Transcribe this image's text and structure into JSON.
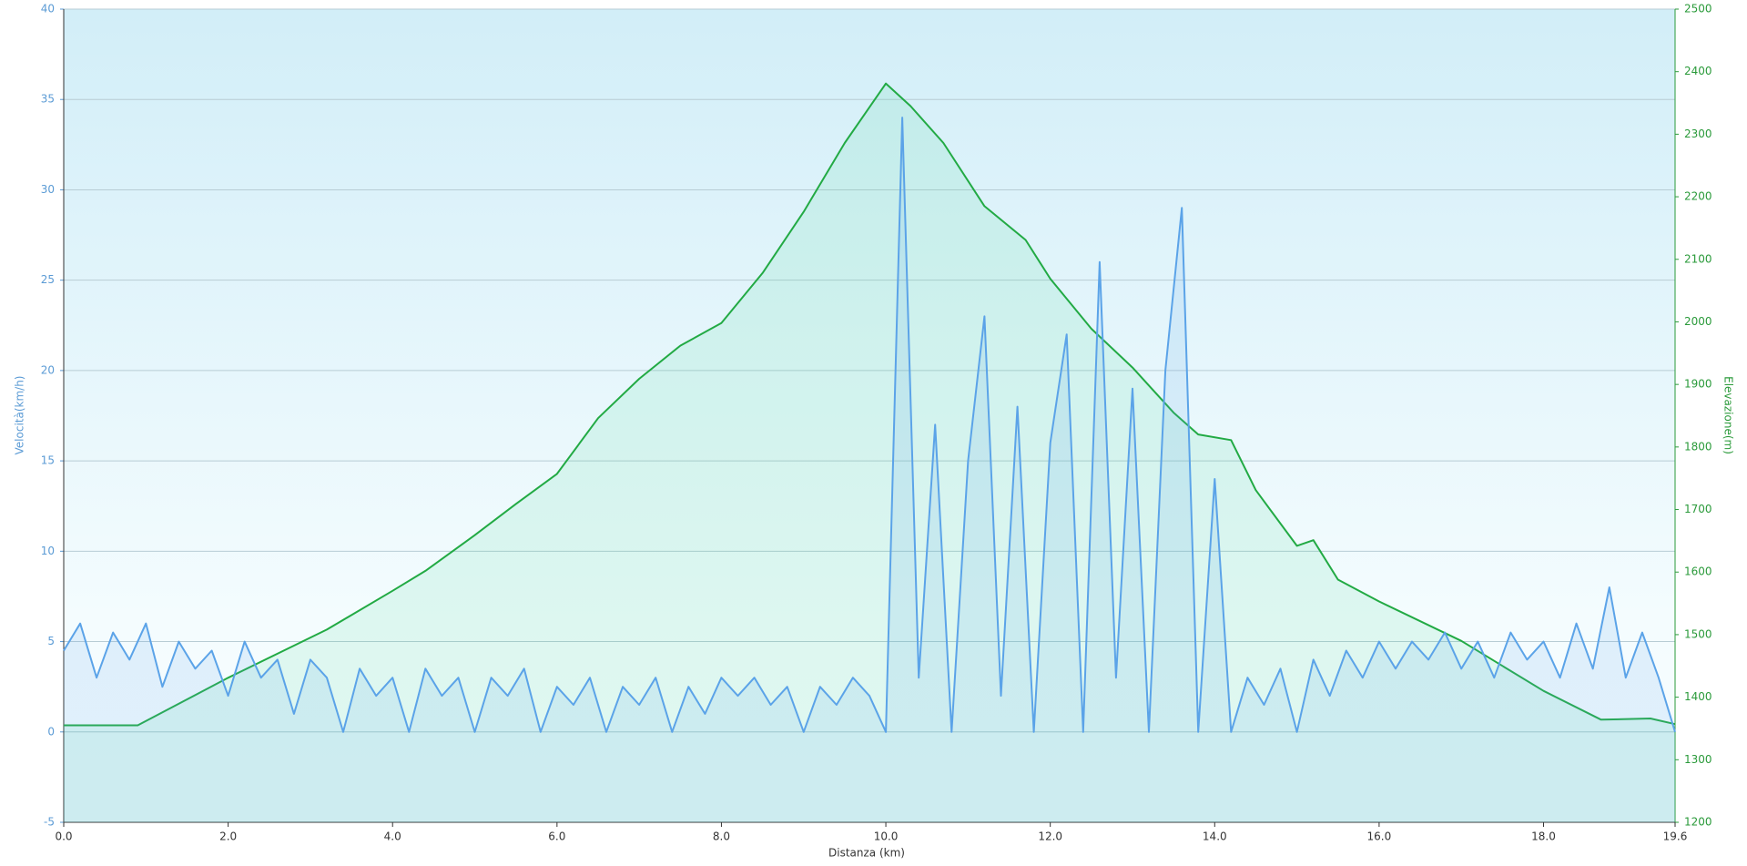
{
  "chart_data": {
    "type": "line",
    "xlabel": "Distanza  (km)",
    "ylabel": "Velocità(km/h)",
    "y2label": "Elevazione(m)",
    "xlim": [
      0,
      19.6
    ],
    "xticks": [
      {
        "value": 0,
        "label": "0.0"
      },
      {
        "value": 2,
        "label": "2.0"
      },
      {
        "value": 4,
        "label": "4.0"
      },
      {
        "value": 6,
        "label": "6.0"
      },
      {
        "value": 8,
        "label": "8.0"
      },
      {
        "value": 10,
        "label": "10.0"
      },
      {
        "value": 12,
        "label": "12.0"
      },
      {
        "value": 14,
        "label": "14.0"
      },
      {
        "value": 16,
        "label": "16.0"
      },
      {
        "value": 18,
        "label": "18.0"
      },
      19.6
    ],
    "ylim": [
      -5,
      40
    ],
    "yticks": [
      -5,
      0,
      5,
      10,
      15,
      20,
      25,
      30,
      35,
      40
    ],
    "y2lim": [
      1200,
      2500
    ],
    "y2ticks": [
      1200,
      1300,
      1400,
      1500,
      1600,
      1700,
      1800,
      1900,
      2000,
      2100,
      2200,
      2300,
      2400,
      2500
    ],
    "grid": true,
    "series": [
      {
        "name": "Elevazione",
        "color": "#22aa44",
        "axis": "y2",
        "x": [
          0,
          0.9,
          2.0,
          3.2,
          4.0,
          4.4,
          5.0,
          5.5,
          6.0,
          6.5,
          7.0,
          7.5,
          8.0,
          8.5,
          9.0,
          9.5,
          10.0,
          10.3,
          10.7,
          11.2,
          11.7,
          12.0,
          12.5,
          13.0,
          13.5,
          13.8,
          14.2,
          14.5,
          15.0,
          15.2,
          15.5,
          16.0,
          17.0,
          18.0,
          18.7,
          19.3,
          19.6
        ],
        "values": [
          1355,
          1355,
          1431,
          1508,
          1570,
          1602,
          1659,
          1709,
          1757,
          1846,
          1909,
          1962,
          1998,
          2078,
          2176,
          2286,
          2381,
          2345,
          2286,
          2185,
          2131,
          2069,
          1989,
          1927,
          1855,
          1820,
          1811,
          1731,
          1642,
          1651,
          1588,
          1553,
          1490,
          1410,
          1364,
          1366,
          1357
        ]
      },
      {
        "name": "Velocità",
        "color": "#5ba3e8",
        "axis": "y",
        "x": [
          0,
          0.2,
          0.4,
          0.6,
          0.8,
          1.0,
          1.2,
          1.4,
          1.6,
          1.8,
          2.0,
          2.2,
          2.4,
          2.6,
          2.8,
          3.0,
          3.2,
          3.4,
          3.6,
          3.8,
          4.0,
          4.2,
          4.4,
          4.6,
          4.8,
          5.0,
          5.2,
          5.4,
          5.6,
          5.8,
          6.0,
          6.2,
          6.4,
          6.6,
          6.8,
          7.0,
          7.2,
          7.4,
          7.6,
          7.8,
          8.0,
          8.2,
          8.4,
          8.6,
          8.8,
          9.0,
          9.2,
          9.4,
          9.6,
          9.8,
          10.0,
          10.2,
          10.4,
          10.6,
          10.8,
          11.0,
          11.2,
          11.4,
          11.6,
          11.8,
          12.0,
          12.2,
          12.4,
          12.6,
          12.8,
          13.0,
          13.2,
          13.4,
          13.6,
          13.8,
          14.0,
          14.2,
          14.4,
          14.6,
          14.8,
          15.0,
          15.2,
          15.4,
          15.6,
          15.8,
          16.0,
          16.2,
          16.4,
          16.6,
          16.8,
          17.0,
          17.2,
          17.4,
          17.6,
          17.8,
          18.0,
          18.2,
          18.4,
          18.6,
          18.8,
          19.0,
          19.2,
          19.4,
          19.6
        ],
        "values": [
          4.5,
          6,
          3,
          5.5,
          4,
          6,
          2.5,
          5,
          3.5,
          4.5,
          2,
          5,
          3,
          4,
          1,
          4,
          3,
          0,
          3.5,
          2,
          3,
          0,
          3.5,
          2,
          3,
          0,
          3,
          2,
          3.5,
          0,
          2.5,
          1.5,
          3,
          0,
          2.5,
          1.5,
          3,
          0,
          2.5,
          1,
          3,
          2,
          3,
          1.5,
          2.5,
          0,
          2.5,
          1.5,
          3,
          2,
          0,
          34,
          3,
          17,
          0,
          15,
          23,
          2,
          18,
          0,
          16,
          22,
          0,
          26,
          3,
          19,
          0,
          20,
          29,
          0,
          14,
          0,
          3,
          1.5,
          3.5,
          0,
          4,
          2,
          4.5,
          3,
          5,
          3.5,
          5,
          4,
          5.5,
          3.5,
          5,
          3,
          5.5,
          4,
          5,
          3,
          6,
          3.5,
          8,
          3,
          5.5,
          3,
          0
        ]
      }
    ]
  }
}
